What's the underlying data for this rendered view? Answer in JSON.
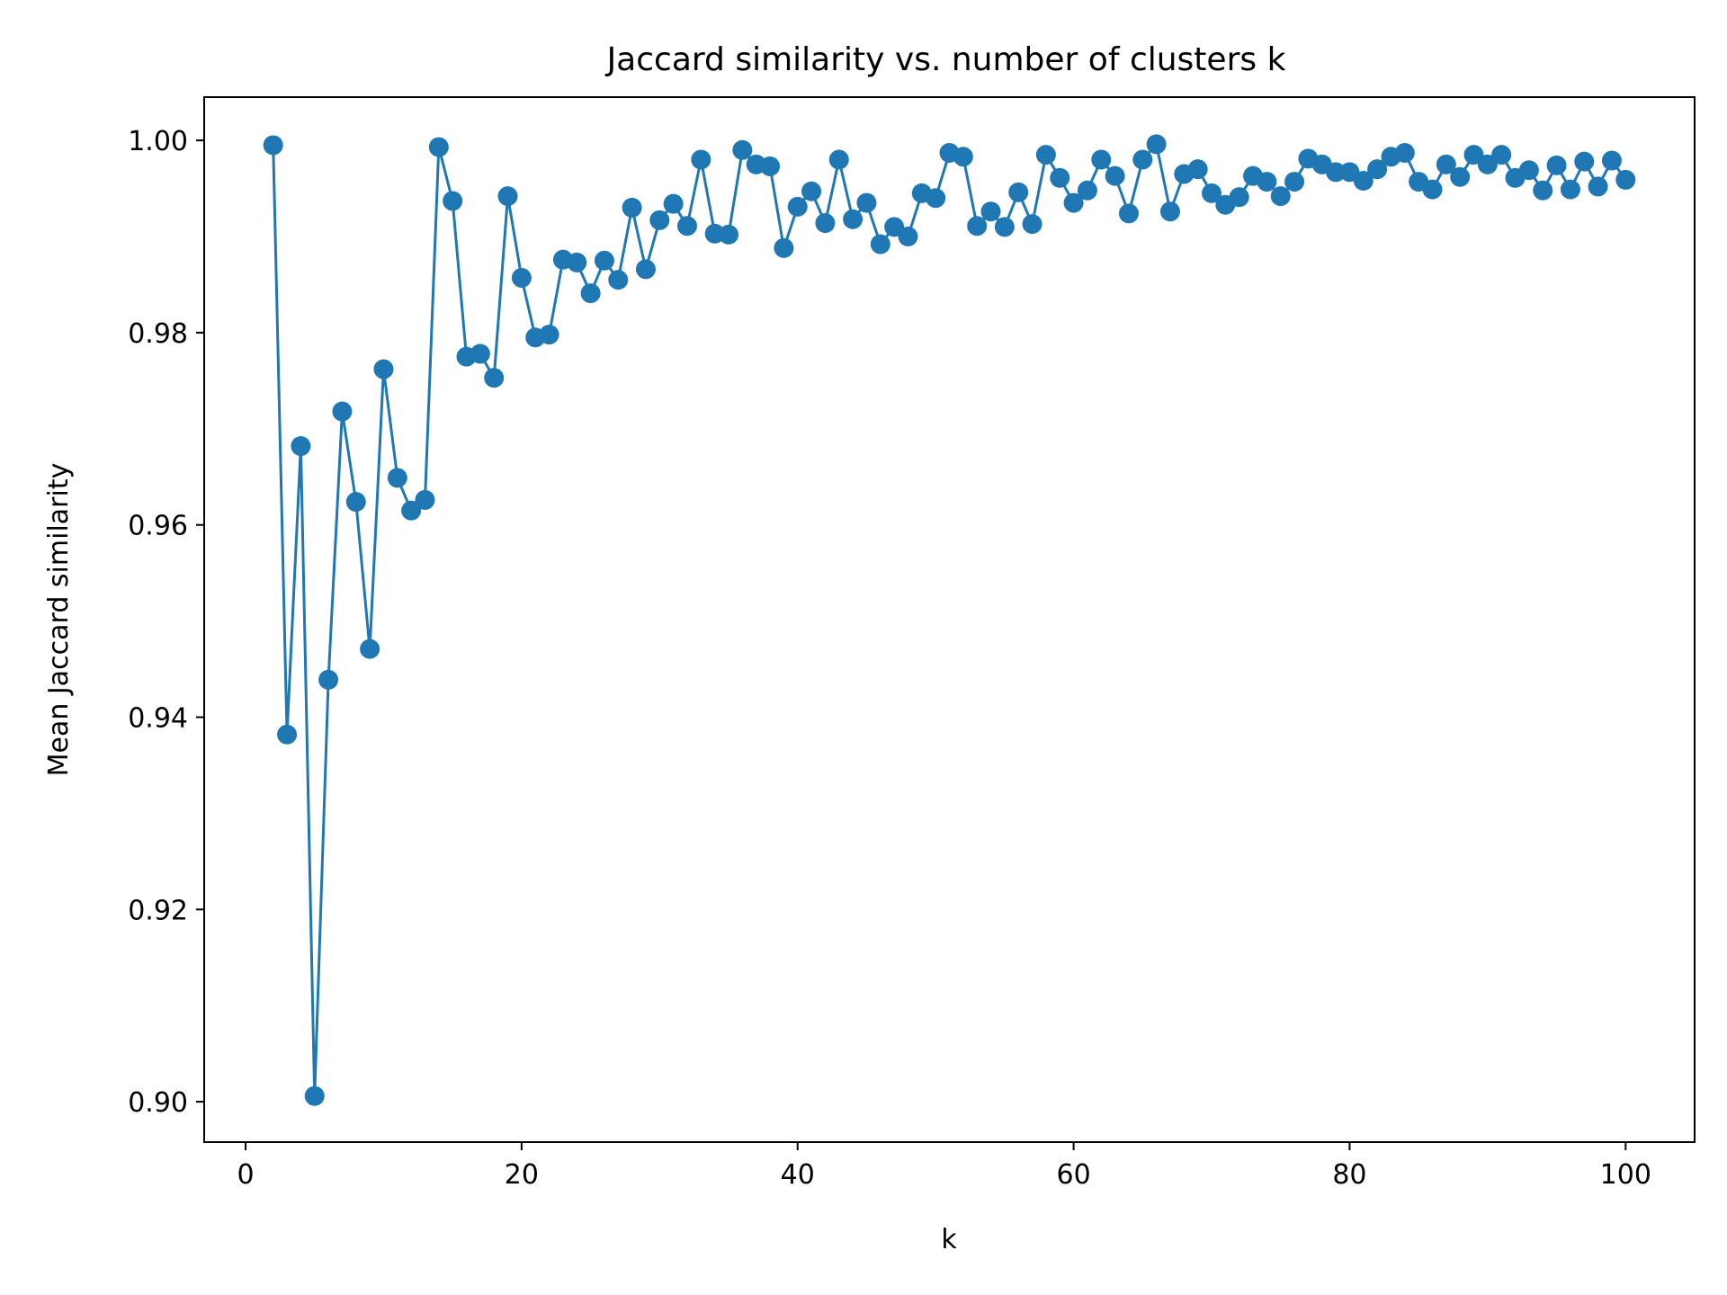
{
  "chart_data": {
    "type": "line",
    "title": "Jaccard similarity vs. number of clusters k",
    "xlabel": "k",
    "ylabel": "Mean Jaccard similarity",
    "xlim": [
      -3,
      105
    ],
    "ylim": [
      0.8958,
      1.0045
    ],
    "xticks": [
      0,
      20,
      40,
      60,
      80,
      100
    ],
    "xtick_labels": [
      "0",
      "20",
      "40",
      "60",
      "80",
      "100"
    ],
    "yticks": [
      0.9,
      0.92,
      0.94,
      0.96,
      0.98,
      1.0
    ],
    "ytick_labels": [
      "0.90",
      "0.92",
      "0.94",
      "0.96",
      "0.98",
      "1.00"
    ],
    "grid": false,
    "series": [
      {
        "color": "#1f77b4",
        "marker": "circle",
        "x": [
          2,
          3,
          4,
          5,
          6,
          7,
          8,
          9,
          10,
          11,
          12,
          13,
          14,
          15,
          16,
          17,
          18,
          19,
          20,
          21,
          22,
          23,
          24,
          25,
          26,
          27,
          28,
          29,
          30,
          31,
          32,
          33,
          34,
          35,
          36,
          37,
          38,
          39,
          40,
          41,
          42,
          43,
          44,
          45,
          46,
          47,
          48,
          49,
          50,
          51,
          52,
          53,
          54,
          55,
          56,
          57,
          58,
          59,
          60,
          61,
          62,
          63,
          64,
          65,
          66,
          67,
          68,
          69,
          70,
          71,
          72,
          73,
          74,
          75,
          76,
          77,
          78,
          79,
          80,
          81,
          82,
          83,
          84,
          85,
          86,
          87,
          88,
          89,
          90,
          91,
          92,
          93,
          94,
          95,
          96,
          97,
          98,
          99,
          100
        ],
        "y": [
          0.9995,
          0.9382,
          0.9682,
          0.9006,
          0.9439,
          0.9718,
          0.9624,
          0.9471,
          0.9762,
          0.9649,
          0.9615,
          0.9626,
          0.9993,
          0.9937,
          0.9775,
          0.9778,
          0.9753,
          0.9942,
          0.9857,
          0.9795,
          0.9798,
          0.9876,
          0.9873,
          0.9841,
          0.9875,
          0.9855,
          0.993,
          0.9866,
          0.9917,
          0.9934,
          0.9911,
          0.998,
          0.9903,
          0.9902,
          0.999,
          0.9975,
          0.9973,
          0.9888,
          0.9931,
          0.9947,
          0.9914,
          0.998,
          0.9918,
          0.9935,
          0.9892,
          0.991,
          0.99,
          0.9945,
          0.994,
          0.9987,
          0.9983,
          0.9911,
          0.9926,
          0.991,
          0.9946,
          0.9913,
          0.9985,
          0.9961,
          0.9935,
          0.9948,
          0.998,
          0.9963,
          0.9924,
          0.998,
          0.9996,
          0.9926,
          0.9965,
          0.997,
          0.9945,
          0.9933,
          0.9941,
          0.9963,
          0.9957,
          0.9942,
          0.9957,
          0.9981,
          0.9975,
          0.9967,
          0.9967,
          0.9958,
          0.997,
          0.9983,
          0.9987,
          0.9957,
          0.9949,
          0.9975,
          0.9962,
          0.9985,
          0.9975,
          0.9985,
          0.9961,
          0.9969,
          0.9948,
          0.9974,
          0.9949,
          0.9978,
          0.9952,
          0.9979,
          0.9959
        ]
      }
    ]
  }
}
